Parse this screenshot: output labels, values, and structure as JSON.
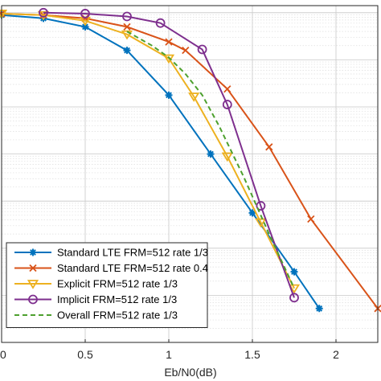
{
  "chart_data": {
    "type": "line",
    "xlabel": "Eb/N0(dB)",
    "ylabel": "",
    "xlim": [
      0,
      2.25
    ],
    "y_scale": "log",
    "ylim_log10": [
      -7,
      0.15
    ],
    "x_ticks": [
      0,
      0.5,
      1,
      1.5,
      2
    ],
    "x_tick_labels": [
      "0",
      "0.5",
      "1",
      "1.5",
      "2"
    ],
    "grid": true,
    "minor_grid": true,
    "legend_position": "bottom-left",
    "series": [
      {
        "name": "Standard LTE FRM=512 rate 1/3",
        "color": "#0072BD",
        "marker": "star",
        "dash": "solid",
        "x": [
          0,
          0.25,
          0.5,
          0.75,
          1.0,
          1.25,
          1.5,
          1.75,
          1.9
        ],
        "log10_y": [
          -0.05,
          -0.12,
          -0.3,
          -0.8,
          -1.75,
          -3.0,
          -4.25,
          -5.5,
          -6.28
        ]
      },
      {
        "name": "Standard LTE FRM=512 rate 0.4",
        "color": "#D95319",
        "marker": "x",
        "dash": "solid",
        "x": [
          0,
          0.25,
          0.5,
          0.75,
          1.0,
          1.1,
          1.35,
          1.6,
          1.85,
          2.25
        ],
        "log10_y": [
          -0.02,
          -0.05,
          -0.12,
          -0.3,
          -0.62,
          -0.8,
          -1.62,
          -2.85,
          -4.38,
          -6.28
        ]
      },
      {
        "name": "Explicit FRM=512 rate 1/3",
        "color": "#EDB120",
        "marker": "triangle-down",
        "dash": "solid",
        "x": [
          0,
          0.25,
          0.5,
          0.75,
          1.0,
          1.15,
          1.35,
          1.55,
          1.75
        ],
        "log10_y": [
          -0.02,
          -0.05,
          -0.17,
          -0.46,
          -0.97,
          -1.78,
          -3.05,
          -4.45,
          -5.85
        ]
      },
      {
        "name": "Implicit FRM=512 rate 1/3",
        "color": "#7E2F8E",
        "marker": "circle",
        "dash": "solid",
        "x": [
          0.25,
          0.5,
          0.75,
          0.95,
          1.2,
          1.35,
          1.55,
          1.75
        ],
        "log10_y": [
          0.0,
          -0.02,
          -0.08,
          -0.22,
          -0.78,
          -1.95,
          -4.1,
          -6.05
        ]
      },
      {
        "name": "Overall FRM=512 rate 1/3",
        "color": "#4DA02E",
        "marker": "none",
        "dash": "dashed",
        "x": [
          0.75,
          0.9,
          1.0,
          1.1,
          1.2,
          1.3,
          1.45,
          1.6,
          1.75
        ],
        "log10_y": [
          -0.4,
          -0.7,
          -0.95,
          -1.3,
          -1.75,
          -2.4,
          -3.5,
          -4.7,
          -5.85
        ]
      }
    ]
  }
}
